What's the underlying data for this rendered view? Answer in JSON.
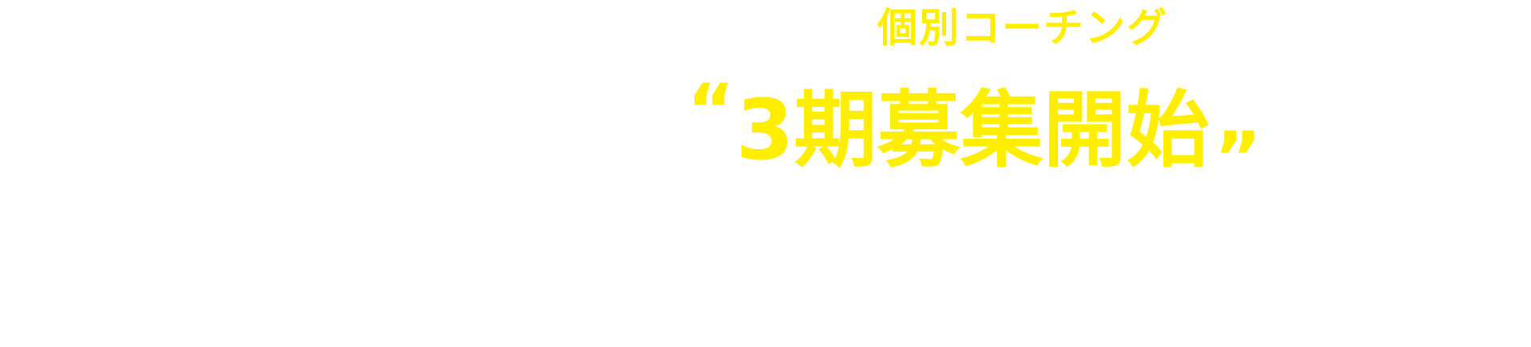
{
  "banner": {
    "subtitle": "個別コーチング",
    "headline": {
      "open_quote": "“",
      "text": "3期募集開始",
      "close_quote": "”"
    },
    "colors": {
      "text": "#ffee00",
      "background": "#ffffff"
    }
  }
}
